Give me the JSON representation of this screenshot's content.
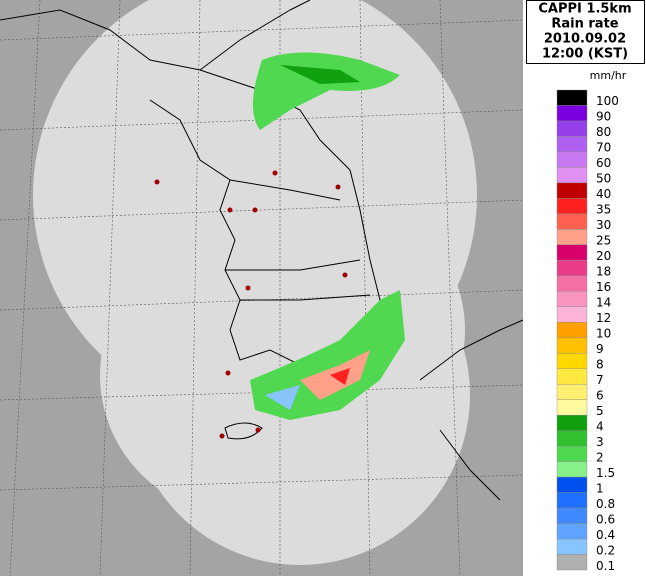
{
  "header": {
    "lines": [
      "CAPPI 1.5km",
      "Rain rate",
      "2010.09.02",
      "12:00 (KST)"
    ]
  },
  "legend": {
    "unit": "mm/hr",
    "levels": [
      {
        "label": 100,
        "color": "#000000"
      },
      {
        "label": 90,
        "color": "#7a00e0"
      },
      {
        "label": 80,
        "color": "#9640ec"
      },
      {
        "label": 70,
        "color": "#b060f0"
      },
      {
        "label": 60,
        "color": "#c878f0"
      },
      {
        "label": 50,
        "color": "#e090f0"
      },
      {
        "label": 40,
        "color": "#c00000"
      },
      {
        "label": 35,
        "color": "#ff2020"
      },
      {
        "label": 30,
        "color": "#ff6050"
      },
      {
        "label": 25,
        "color": "#ffa088"
      },
      {
        "label": 20,
        "color": "#d8006a"
      },
      {
        "label": 18,
        "color": "#ea3c88"
      },
      {
        "label": 16,
        "color": "#f470a4"
      },
      {
        "label": 14,
        "color": "#f894c0"
      },
      {
        "label": 12,
        "color": "#fcb4d8"
      },
      {
        "label": 10,
        "color": "#ffa000"
      },
      {
        "label": 9,
        "color": "#ffc000"
      },
      {
        "label": 8,
        "color": "#ffd800"
      },
      {
        "label": 7,
        "color": "#ffe840"
      },
      {
        "label": 6,
        "color": "#fff070"
      },
      {
        "label": 5,
        "color": "#fffaa0"
      },
      {
        "label": 4,
        "color": "#10a010"
      },
      {
        "label": 3,
        "color": "#30c030"
      },
      {
        "label": 2,
        "color": "#50d850"
      },
      {
        "label": 1.5,
        "color": "#88f088"
      },
      {
        "label": 1,
        "color": "#0050f0"
      },
      {
        "label": 0.8,
        "color": "#2070ff"
      },
      {
        "label": 0.6,
        "color": "#4088ff"
      },
      {
        "label": 0.4,
        "color": "#60a4ff"
      },
      {
        "label": 0.2,
        "color": "#88c4ff"
      },
      {
        "label": 0.1,
        "color": "#b0b0b0"
      }
    ]
  }
}
